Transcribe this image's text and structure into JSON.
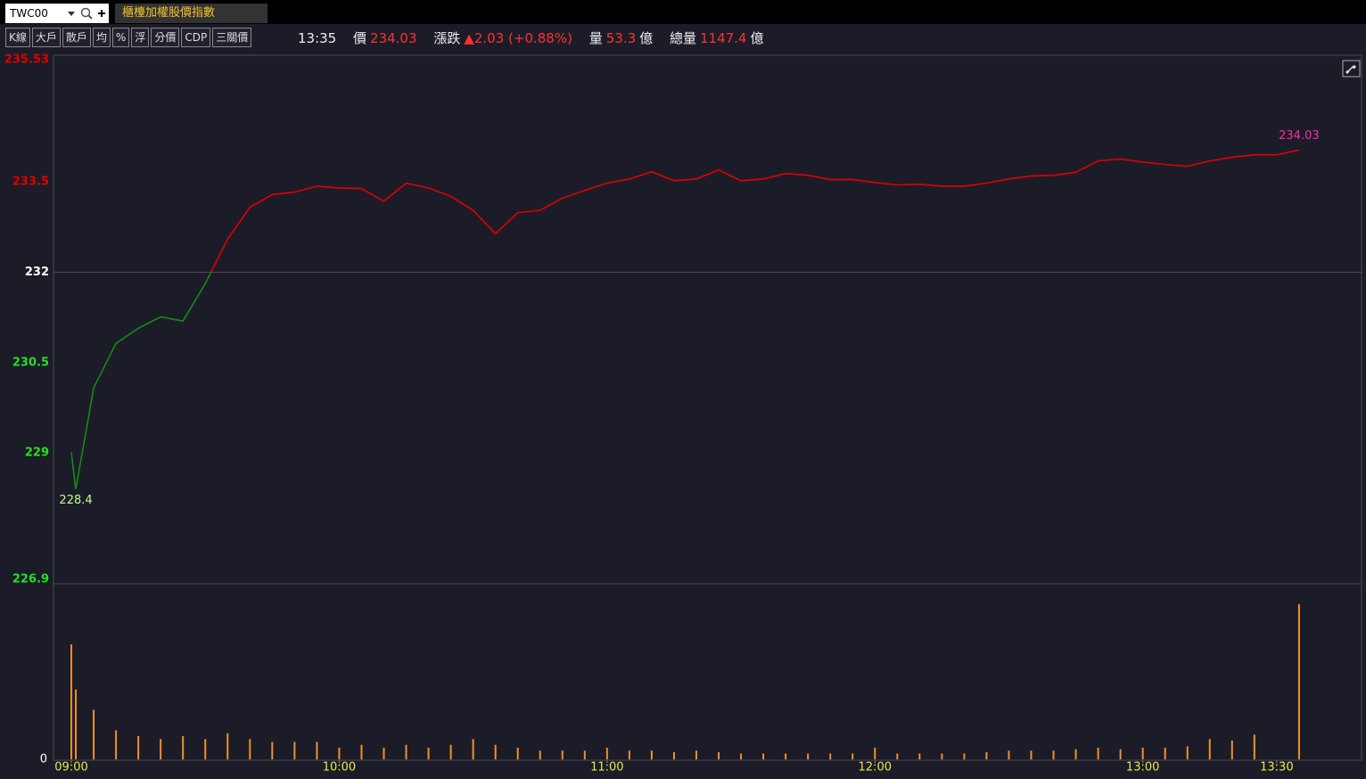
{
  "toolbar": {
    "symbol": "TWC00",
    "name": "櫃檯加權股價指數",
    "buttons": [
      "K線",
      "大戶",
      "散戶",
      "均",
      "%",
      "浮",
      "分價",
      "CDP",
      "三關價"
    ]
  },
  "quote": {
    "time": "13:35",
    "price_label": "價",
    "price": 234.03,
    "change_label": "漲跌",
    "change": "▲2.03 (+0.88%)",
    "volume_label": "量",
    "volume": 53.3,
    "unit": "億",
    "total_label": "總量",
    "total": 1147.4
  },
  "chart_data": [
    {
      "type": "line",
      "x": [
        "09:00",
        "09:01",
        "09:05",
        "09:10",
        "09:15",
        "09:20",
        "09:25",
        "09:30",
        "09:35",
        "09:40",
        "09:45",
        "09:50",
        "09:55",
        "10:00",
        "10:05",
        "10:10",
        "10:15",
        "10:20",
        "10:25",
        "10:30",
        "10:35",
        "10:40",
        "10:45",
        "10:50",
        "10:55",
        "11:00",
        "11:05",
        "11:10",
        "11:15",
        "11:20",
        "11:25",
        "11:30",
        "11:35",
        "11:40",
        "11:45",
        "11:50",
        "11:55",
        "12:00",
        "12:05",
        "12:10",
        "12:15",
        "12:20",
        "12:25",
        "12:30",
        "12:35",
        "12:40",
        "12:45",
        "12:50",
        "12:55",
        "13:00",
        "13:05",
        "13:10",
        "13:15",
        "13:20",
        "13:25",
        "13:30",
        "13:35"
      ],
      "values": [
        229.01,
        228.4,
        230.08,
        230.82,
        231.07,
        231.26,
        231.19,
        231.81,
        232.55,
        233.08,
        233.29,
        233.33,
        233.43,
        233.4,
        233.39,
        233.18,
        233.48,
        233.4,
        233.26,
        233.03,
        232.64,
        232.99,
        233.03,
        233.23,
        233.36,
        233.48,
        233.55,
        233.67,
        233.52,
        233.55,
        233.7,
        233.52,
        233.55,
        233.64,
        233.61,
        233.54,
        233.54,
        233.49,
        233.45,
        233.46,
        233.43,
        233.43,
        233.48,
        233.55,
        233.6,
        233.61,
        233.66,
        233.85,
        233.88,
        233.83,
        233.79,
        233.76,
        233.85,
        233.91,
        233.95,
        233.95,
        234.03
      ],
      "colors": {
        "above": "#e00000",
        "below": "#138a13",
        "equal": "#ffffff"
      },
      "reference": 232,
      "xlim": [
        "08:56",
        "13:49"
      ],
      "ylim": [
        226.9,
        235.53
      ],
      "yticks": [
        226.9,
        229,
        230.5,
        232,
        233.5,
        235.53
      ],
      "annotations": [
        {
          "x": "09:01",
          "value": 228.4,
          "color": "#b8ff90"
        },
        {
          "x": "13:35",
          "value": 234.03,
          "color": "#ff2aa0"
        }
      ]
    },
    {
      "type": "bar",
      "x": [
        "09:00",
        "09:01",
        "09:05",
        "09:10",
        "09:15",
        "09:20",
        "09:25",
        "09:30",
        "09:35",
        "09:40",
        "09:45",
        "09:50",
        "09:55",
        "10:00",
        "10:05",
        "10:10",
        "10:15",
        "10:20",
        "10:25",
        "10:30",
        "10:35",
        "10:40",
        "10:45",
        "10:50",
        "10:55",
        "11:00",
        "11:05",
        "11:10",
        "11:15",
        "11:20",
        "11:25",
        "11:30",
        "11:35",
        "11:40",
        "11:45",
        "11:50",
        "11:55",
        "12:00",
        "12:05",
        "12:10",
        "12:15",
        "12:20",
        "12:25",
        "12:30",
        "12:35",
        "12:40",
        "12:45",
        "12:50",
        "12:55",
        "13:00",
        "13:05",
        "13:10",
        "13:15",
        "13:20",
        "13:25",
        "13:30",
        "13:35"
      ],
      "values": [
        39.5,
        24,
        17,
        10,
        8,
        7,
        8,
        7,
        9,
        7,
        6,
        6,
        6,
        4,
        5,
        4,
        5,
        4,
        5,
        7,
        5,
        4,
        3,
        3,
        3,
        4,
        3,
        3,
        2.5,
        3,
        2.5,
        2,
        2,
        2,
        2,
        2,
        2,
        4,
        2,
        2,
        2,
        2,
        2.5,
        3,
        3,
        3,
        3.5,
        4,
        3.5,
        4,
        4,
        4.5,
        7,
        6.5,
        8.5,
        null,
        53.3
      ],
      "color": "#f0902a",
      "xlim": [
        "08:56",
        "13:49"
      ],
      "xticks": [
        "09:00",
        "10:00",
        "11:00",
        "12:00",
        "13:00",
        "13:30"
      ],
      "ylim": [
        0,
        60
      ],
      "yticks": [
        0
      ]
    }
  ]
}
